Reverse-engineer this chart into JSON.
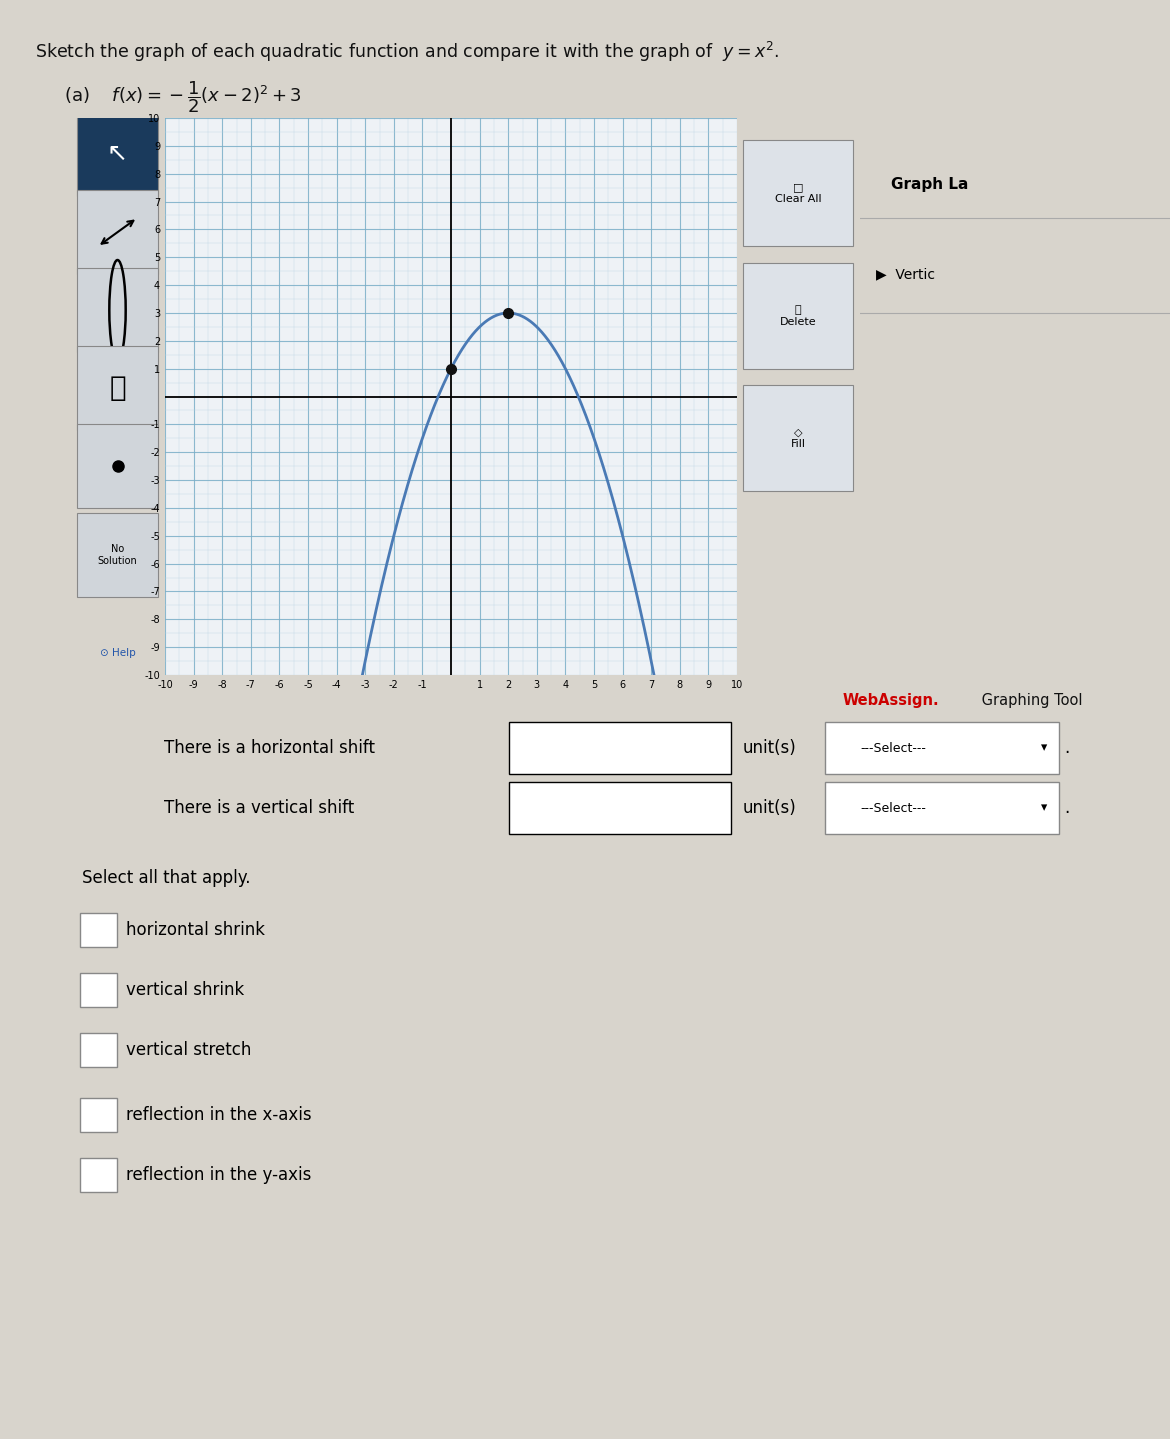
{
  "graph_xlim": [
    -10,
    10
  ],
  "graph_ylim": [
    -10,
    10
  ],
  "graph_bg": "#eef2f6",
  "graph_grid_major_color": "#7aaec8",
  "graph_grid_minor_color": "#b8d4e4",
  "curve_color": "#4a7ab5",
  "curve_lw": 2.0,
  "dot_color": "#111111",
  "dot_size": 7,
  "dot_points": [
    [
      0,
      1
    ],
    [
      2,
      3
    ]
  ],
  "webassign_color": "#cc0000",
  "panel_bg": "#c8cfd8",
  "toolbar_bg_active": "#1a3a5c",
  "toolbar_btn_bg": "#d0d5da",
  "sidebar_bg": "#c0c6cc",
  "bg_color": "#d8d4cc",
  "header_top_bg": "#3a3a3a",
  "checkboxes": [
    "horizontal shrink",
    "vertical shrink",
    "vertical stretch",
    "reflection in the x-axis",
    "reflection in the y-axis"
  ]
}
